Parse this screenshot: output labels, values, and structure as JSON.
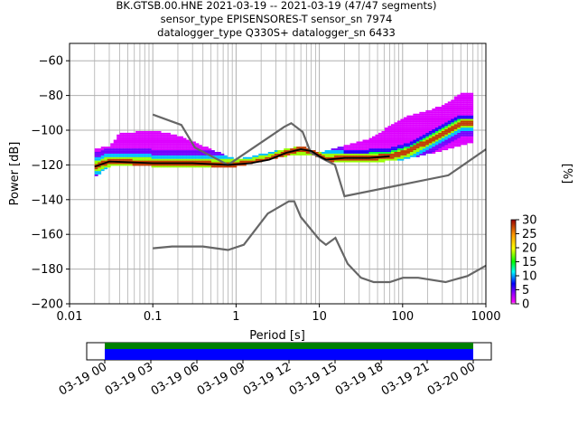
{
  "title_lines": [
    "BK.GTSB.00.HNE   2021-03-19 -- 2021-03-19  (47/47 segments)",
    "sensor_type EPISENSORES-T sensor_sn 7974",
    "datalogger_type Q330S+ datalogger_sn 6433"
  ],
  "chart_data": {
    "type": "heatmap",
    "xlabel": "Period [s]",
    "ylabel": "Power [dB]",
    "xscale": "log",
    "xlim": [
      0.01,
      1000
    ],
    "ylim": [
      -200,
      -50
    ],
    "xticks": [
      {
        "value": 0.01,
        "label": "0.01"
      },
      {
        "value": 0.1,
        "label": "0.1"
      },
      {
        "value": 1,
        "label": "1"
      },
      {
        "value": 10,
        "label": "10"
      },
      {
        "value": 100,
        "label": "100"
      },
      {
        "value": 1000,
        "label": "1000"
      }
    ],
    "yticks": [
      -200,
      -180,
      -160,
      -140,
      -120,
      -100,
      -80,
      -60
    ],
    "grid": true,
    "colorbar": {
      "label": "[%]",
      "range": [
        0,
        30
      ],
      "ticks": [
        0,
        5,
        10,
        15,
        20,
        25,
        30
      ]
    },
    "noise_models": [
      {
        "points": [
          [
            0.1,
            -91
          ],
          [
            0.22,
            -97
          ],
          [
            0.32,
            -110
          ],
          [
            0.8,
            -120
          ],
          [
            3.8,
            -98
          ],
          [
            4.6,
            -96
          ],
          [
            6.3,
            -101
          ],
          [
            7.9,
            -113
          ],
          [
            15.4,
            -120
          ],
          [
            20,
            -138
          ],
          [
            354,
            -126
          ],
          [
            1000,
            -111
          ]
        ]
      },
      {
        "points": [
          [
            0.1,
            -168
          ],
          [
            0.17,
            -167
          ],
          [
            0.4,
            -167
          ],
          [
            0.8,
            -169
          ],
          [
            1.24,
            -166
          ],
          [
            2.4,
            -148
          ],
          [
            4.3,
            -141
          ],
          [
            5.0,
            -141
          ],
          [
            6.0,
            -150
          ],
          [
            10,
            -163
          ],
          [
            12,
            -166
          ],
          [
            15.6,
            -162
          ],
          [
            21.9,
            -177
          ],
          [
            31.6,
            -185
          ],
          [
            45,
            -187.5
          ],
          [
            70,
            -187.5
          ],
          [
            101,
            -185
          ],
          [
            154,
            -185
          ],
          [
            328,
            -187.5
          ],
          [
            600,
            -184
          ],
          [
            1000,
            -178
          ]
        ]
      }
    ],
    "mode_line": [
      [
        0.02,
        -121
      ],
      [
        0.03,
        -118
      ],
      [
        0.1,
        -119
      ],
      [
        0.3,
        -119
      ],
      [
        0.8,
        -120
      ],
      [
        1.5,
        -119
      ],
      [
        2.5,
        -117
      ],
      [
        4,
        -113
      ],
      [
        6,
        -111
      ],
      [
        8,
        -112
      ],
      [
        10,
        -115
      ],
      [
        12,
        -117
      ],
      [
        20,
        -116
      ],
      [
        40,
        -116
      ],
      [
        70,
        -115
      ],
      [
        120,
        -112
      ],
      [
        250,
        -104
      ],
      [
        500,
        -96
      ],
      [
        700,
        -96
      ]
    ],
    "envelope_upper": [
      [
        0.02,
        -112
      ],
      [
        0.03,
        -110
      ],
      [
        0.04,
        -103
      ],
      [
        0.1,
        -101
      ],
      [
        0.2,
        -104
      ],
      [
        0.5,
        -112
      ],
      [
        1,
        -118
      ],
      [
        3,
        -113
      ],
      [
        6,
        -110
      ],
      [
        10,
        -114
      ],
      [
        20,
        -110
      ],
      [
        40,
        -106
      ],
      [
        100,
        -94
      ],
      [
        300,
        -87
      ],
      [
        500,
        -80
      ],
      [
        700,
        -79
      ]
    ],
    "envelope_lower": [
      [
        0.02,
        -126
      ],
      [
        0.03,
        -120
      ],
      [
        0.1,
        -120
      ],
      [
        0.5,
        -121
      ],
      [
        1,
        -120
      ],
      [
        4,
        -114
      ],
      [
        8,
        -113
      ],
      [
        15,
        -118
      ],
      [
        40,
        -118
      ],
      [
        100,
        -116
      ],
      [
        300,
        -111
      ],
      [
        700,
        -106
      ]
    ],
    "time_axis": {
      "range": [
        "2021-03-19 00:00",
        "2021-03-20 00:00"
      ],
      "tick_labels": [
        "03-19 00",
        "03-19 03",
        "03-19 06",
        "03-19 09",
        "03-19 12",
        "03-19 15",
        "03-19 18",
        "03-19 21",
        "03-20 00"
      ]
    }
  }
}
